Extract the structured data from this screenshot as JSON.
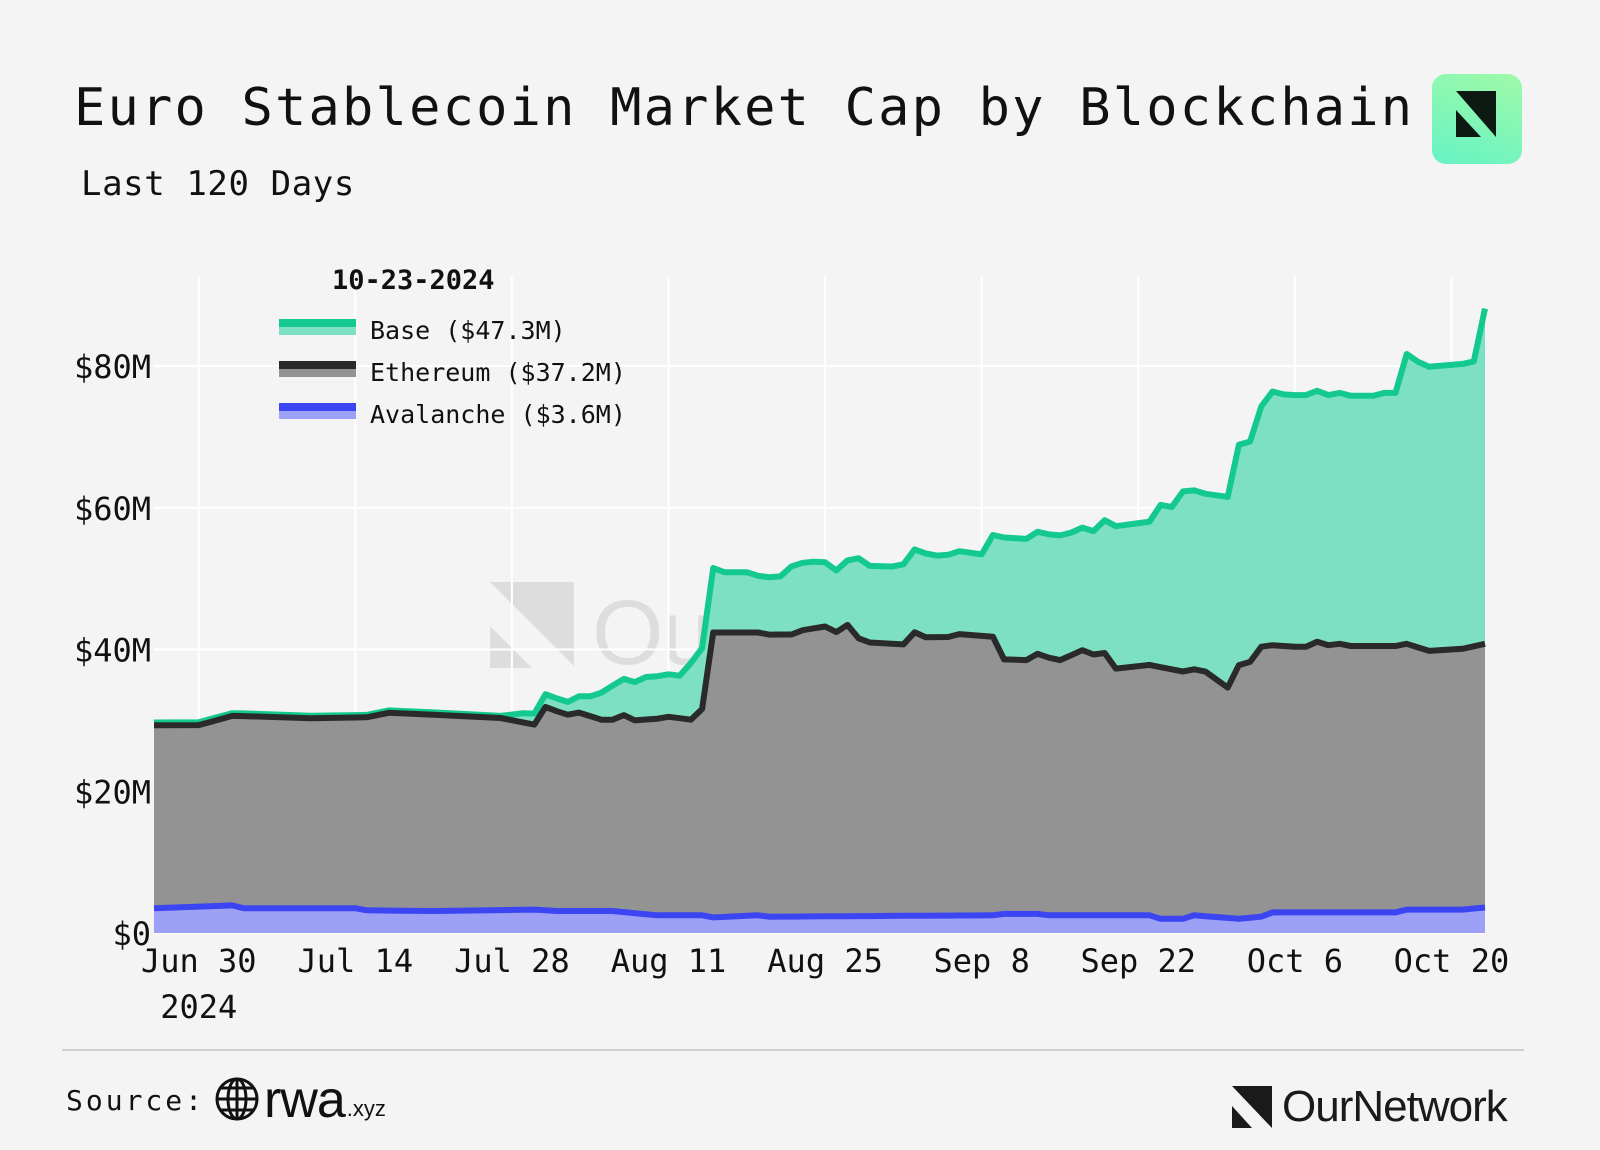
{
  "header": {
    "title": "Euro Stablecoin Market Cap by Blockchain",
    "subtitle": "Last 120 Days",
    "logo_icon": "ournetwork-logo-icon"
  },
  "colors": {
    "background": "#f4f4f4",
    "base_line": "#13c98f",
    "base_fill": "#7ee0c3",
    "ethereum_line": "#2a2a2a",
    "ethereum_fill": "#939393",
    "avalanche_line": "#3b46f2",
    "avalanche_fill": "#9ca1f6",
    "grid": "#ffffff"
  },
  "chart_data": {
    "type": "area",
    "stacked": true,
    "title": "Euro Stablecoin Market Cap by Blockchain",
    "subtitle": "Last 120 Days",
    "xlabel": "",
    "ylabel": "",
    "xlim": [
      "2024-06-26",
      "2024-10-23"
    ],
    "ylim": [
      0,
      92
    ],
    "grid": true,
    "legend_placement": "top-left",
    "legend_title": "10-23-2024",
    "x_ticks": [
      {
        "date": "2024-06-30",
        "label": "Jun 30",
        "sublabel": "2024"
      },
      {
        "date": "2024-07-14",
        "label": "Jul 14"
      },
      {
        "date": "2024-07-28",
        "label": "Jul 28"
      },
      {
        "date": "2024-08-11",
        "label": "Aug 11"
      },
      {
        "date": "2024-08-25",
        "label": "Aug 25"
      },
      {
        "date": "2024-09-08",
        "label": "Sep 8"
      },
      {
        "date": "2024-09-22",
        "label": "Sep 22"
      },
      {
        "date": "2024-10-06",
        "label": "Oct 6"
      },
      {
        "date": "2024-10-20",
        "label": "Oct 20"
      }
    ],
    "y_ticks": [
      {
        "value": 0,
        "label": "$0"
      },
      {
        "value": 20,
        "label": "$20M"
      },
      {
        "value": 40,
        "label": "$40M"
      },
      {
        "value": 60,
        "label": "$60M"
      },
      {
        "value": 80,
        "label": "$80M"
      }
    ],
    "unit": "USD millions",
    "series": [
      {
        "name": "Avalanche",
        "legend": "Avalanche ($3.6M)",
        "points": [
          [
            "2024-06-26",
            3.5
          ],
          [
            "2024-07-03",
            3.9
          ],
          [
            "2024-07-04",
            3.5
          ],
          [
            "2024-07-14",
            3.5
          ],
          [
            "2024-07-15",
            3.2
          ],
          [
            "2024-07-21",
            3.1
          ],
          [
            "2024-07-30",
            3.3
          ],
          [
            "2024-08-01",
            3.1
          ],
          [
            "2024-08-06",
            3.1
          ],
          [
            "2024-08-10",
            2.5
          ],
          [
            "2024-08-14",
            2.5
          ],
          [
            "2024-08-15",
            2.2
          ],
          [
            "2024-08-19",
            2.5
          ],
          [
            "2024-08-20",
            2.3
          ],
          [
            "2024-09-09",
            2.5
          ],
          [
            "2024-09-10",
            2.7
          ],
          [
            "2024-09-13",
            2.7
          ],
          [
            "2024-09-14",
            2.5
          ],
          [
            "2024-09-23",
            2.5
          ],
          [
            "2024-09-24",
            2.0
          ],
          [
            "2024-09-26",
            2.0
          ],
          [
            "2024-09-27",
            2.5
          ],
          [
            "2024-10-01",
            2.0
          ],
          [
            "2024-10-03",
            2.3
          ],
          [
            "2024-10-04",
            2.9
          ],
          [
            "2024-10-15",
            2.9
          ],
          [
            "2024-10-16",
            3.3
          ],
          [
            "2024-10-21",
            3.3
          ],
          [
            "2024-10-23",
            3.6
          ]
        ]
      },
      {
        "name": "Ethereum",
        "legend": "Ethereum ($37.2M)",
        "points": [
          [
            "2024-06-26",
            25.8
          ],
          [
            "2024-06-30",
            25.6
          ],
          [
            "2024-07-04",
            27.1
          ],
          [
            "2024-07-10",
            26.8
          ],
          [
            "2024-07-14",
            26.9
          ],
          [
            "2024-07-17",
            27.9
          ],
          [
            "2024-07-21",
            27.7
          ],
          [
            "2024-07-27",
            27.1
          ],
          [
            "2024-07-30",
            26.1
          ],
          [
            "2024-07-31",
            28.7
          ],
          [
            "2024-08-02",
            27.7
          ],
          [
            "2024-08-03",
            28.0
          ],
          [
            "2024-08-05",
            27.0
          ],
          [
            "2024-08-06",
            27.0
          ],
          [
            "2024-08-07",
            27.8
          ],
          [
            "2024-08-08",
            27.2
          ],
          [
            "2024-08-11",
            28.0
          ],
          [
            "2024-08-13",
            27.6
          ],
          [
            "2024-08-14",
            29.1
          ],
          [
            "2024-08-15",
            40.2
          ],
          [
            "2024-08-19",
            39.9
          ],
          [
            "2024-08-20",
            39.8
          ],
          [
            "2024-08-22",
            39.8
          ],
          [
            "2024-08-23",
            40.4
          ],
          [
            "2024-08-25",
            40.9
          ],
          [
            "2024-08-26",
            40.1
          ],
          [
            "2024-08-27",
            41.1
          ],
          [
            "2024-08-28",
            39.2
          ],
          [
            "2024-08-29",
            38.6
          ],
          [
            "2024-09-01",
            38.3
          ],
          [
            "2024-09-02",
            40.0
          ],
          [
            "2024-09-03",
            39.3
          ],
          [
            "2024-09-05",
            39.3
          ],
          [
            "2024-09-06",
            39.7
          ],
          [
            "2024-09-09",
            39.3
          ],
          [
            "2024-09-10",
            35.9
          ],
          [
            "2024-09-12",
            35.8
          ],
          [
            "2024-09-13",
            36.7
          ],
          [
            "2024-09-15",
            36.0
          ],
          [
            "2024-09-17",
            37.4
          ],
          [
            "2024-09-18",
            36.8
          ],
          [
            "2024-09-19",
            37.0
          ],
          [
            "2024-09-20",
            34.8
          ],
          [
            "2024-09-24",
            35.5
          ],
          [
            "2024-09-26",
            34.9
          ],
          [
            "2024-09-28",
            34.5
          ],
          [
            "2024-09-30",
            32.5
          ],
          [
            "2024-10-01",
            35.8
          ],
          [
            "2024-10-02",
            36.1
          ],
          [
            "2024-10-03",
            38.1
          ],
          [
            "2024-10-04",
            37.7
          ],
          [
            "2024-10-06",
            37.5
          ],
          [
            "2024-10-07",
            37.5
          ],
          [
            "2024-10-08",
            38.2
          ],
          [
            "2024-10-09",
            37.7
          ],
          [
            "2024-10-10",
            37.9
          ],
          [
            "2024-10-11",
            37.6
          ],
          [
            "2024-10-15",
            37.6
          ],
          [
            "2024-10-16",
            37.5
          ],
          [
            "2024-10-18",
            36.5
          ],
          [
            "2024-10-21",
            36.8
          ],
          [
            "2024-10-23",
            37.2
          ]
        ]
      },
      {
        "name": "Base",
        "legend": "Base ($47.3M)",
        "points": [
          [
            "2024-06-26",
            0.4
          ],
          [
            "2024-07-01",
            0.4
          ],
          [
            "2024-07-27",
            0.3
          ],
          [
            "2024-07-29",
            1.3
          ],
          [
            "2024-07-31",
            1.8
          ],
          [
            "2024-08-02",
            1.8
          ],
          [
            "2024-08-04",
            2.8
          ],
          [
            "2024-08-06",
            4.8
          ],
          [
            "2024-08-08",
            5.4
          ],
          [
            "2024-08-09",
            6.0
          ],
          [
            "2024-08-12",
            6.0
          ],
          [
            "2024-08-13",
            8.0
          ],
          [
            "2024-08-14",
            8.6
          ],
          [
            "2024-08-15",
            9.1
          ],
          [
            "2024-08-16",
            8.5
          ],
          [
            "2024-08-18",
            8.5
          ],
          [
            "2024-08-19",
            8.0
          ],
          [
            "2024-08-21",
            8.2
          ],
          [
            "2024-08-22",
            9.6
          ],
          [
            "2024-08-24",
            9.4
          ],
          [
            "2024-08-26",
            8.7
          ],
          [
            "2024-08-27",
            9.1
          ],
          [
            "2024-08-28",
            11.3
          ],
          [
            "2024-08-29",
            10.8
          ],
          [
            "2024-08-31",
            10.9
          ],
          [
            "2024-09-02",
            11.7
          ],
          [
            "2024-09-03",
            11.8
          ],
          [
            "2024-09-04",
            11.5
          ],
          [
            "2024-09-06",
            11.7
          ],
          [
            "2024-09-08",
            11.5
          ],
          [
            "2024-09-10",
            17.2
          ],
          [
            "2024-09-12",
            17.1
          ],
          [
            "2024-09-13",
            17.2
          ],
          [
            "2024-09-15",
            17.6
          ],
          [
            "2024-09-16",
            17.3
          ],
          [
            "2024-09-17",
            17.3
          ],
          [
            "2024-09-18",
            17.4
          ],
          [
            "2024-09-20",
            20.1
          ],
          [
            "2024-09-23",
            20.2
          ],
          [
            "2024-09-24",
            22.9
          ],
          [
            "2024-09-25",
            22.9
          ],
          [
            "2024-09-26",
            25.4
          ],
          [
            "2024-09-28",
            25.1
          ],
          [
            "2024-09-30",
            26.9
          ],
          [
            "2024-10-01",
            31.1
          ],
          [
            "2024-10-02",
            31.1
          ],
          [
            "2024-10-03",
            33.9
          ],
          [
            "2024-10-04",
            35.8
          ],
          [
            "2024-10-05",
            35.5
          ],
          [
            "2024-10-07",
            35.5
          ],
          [
            "2024-10-08",
            35.4
          ],
          [
            "2024-10-09",
            35.3
          ],
          [
            "2024-10-10",
            35.4
          ],
          [
            "2024-10-11",
            35.3
          ],
          [
            "2024-10-13",
            35.3
          ],
          [
            "2024-10-14",
            35.7
          ],
          [
            "2024-10-15",
            35.7
          ],
          [
            "2024-10-16",
            40.9
          ],
          [
            "2024-10-17",
            40.3
          ],
          [
            "2024-10-18",
            40.1
          ],
          [
            "2024-10-21",
            40.2
          ],
          [
            "2024-10-22",
            40.2
          ],
          [
            "2024-10-23",
            47.3
          ]
        ]
      }
    ],
    "watermark": "OurNetwork"
  },
  "footer": {
    "source_label": "Source:",
    "source_brand": "rwa",
    "source_tld": ".xyz",
    "brand": "OurNetwork"
  }
}
